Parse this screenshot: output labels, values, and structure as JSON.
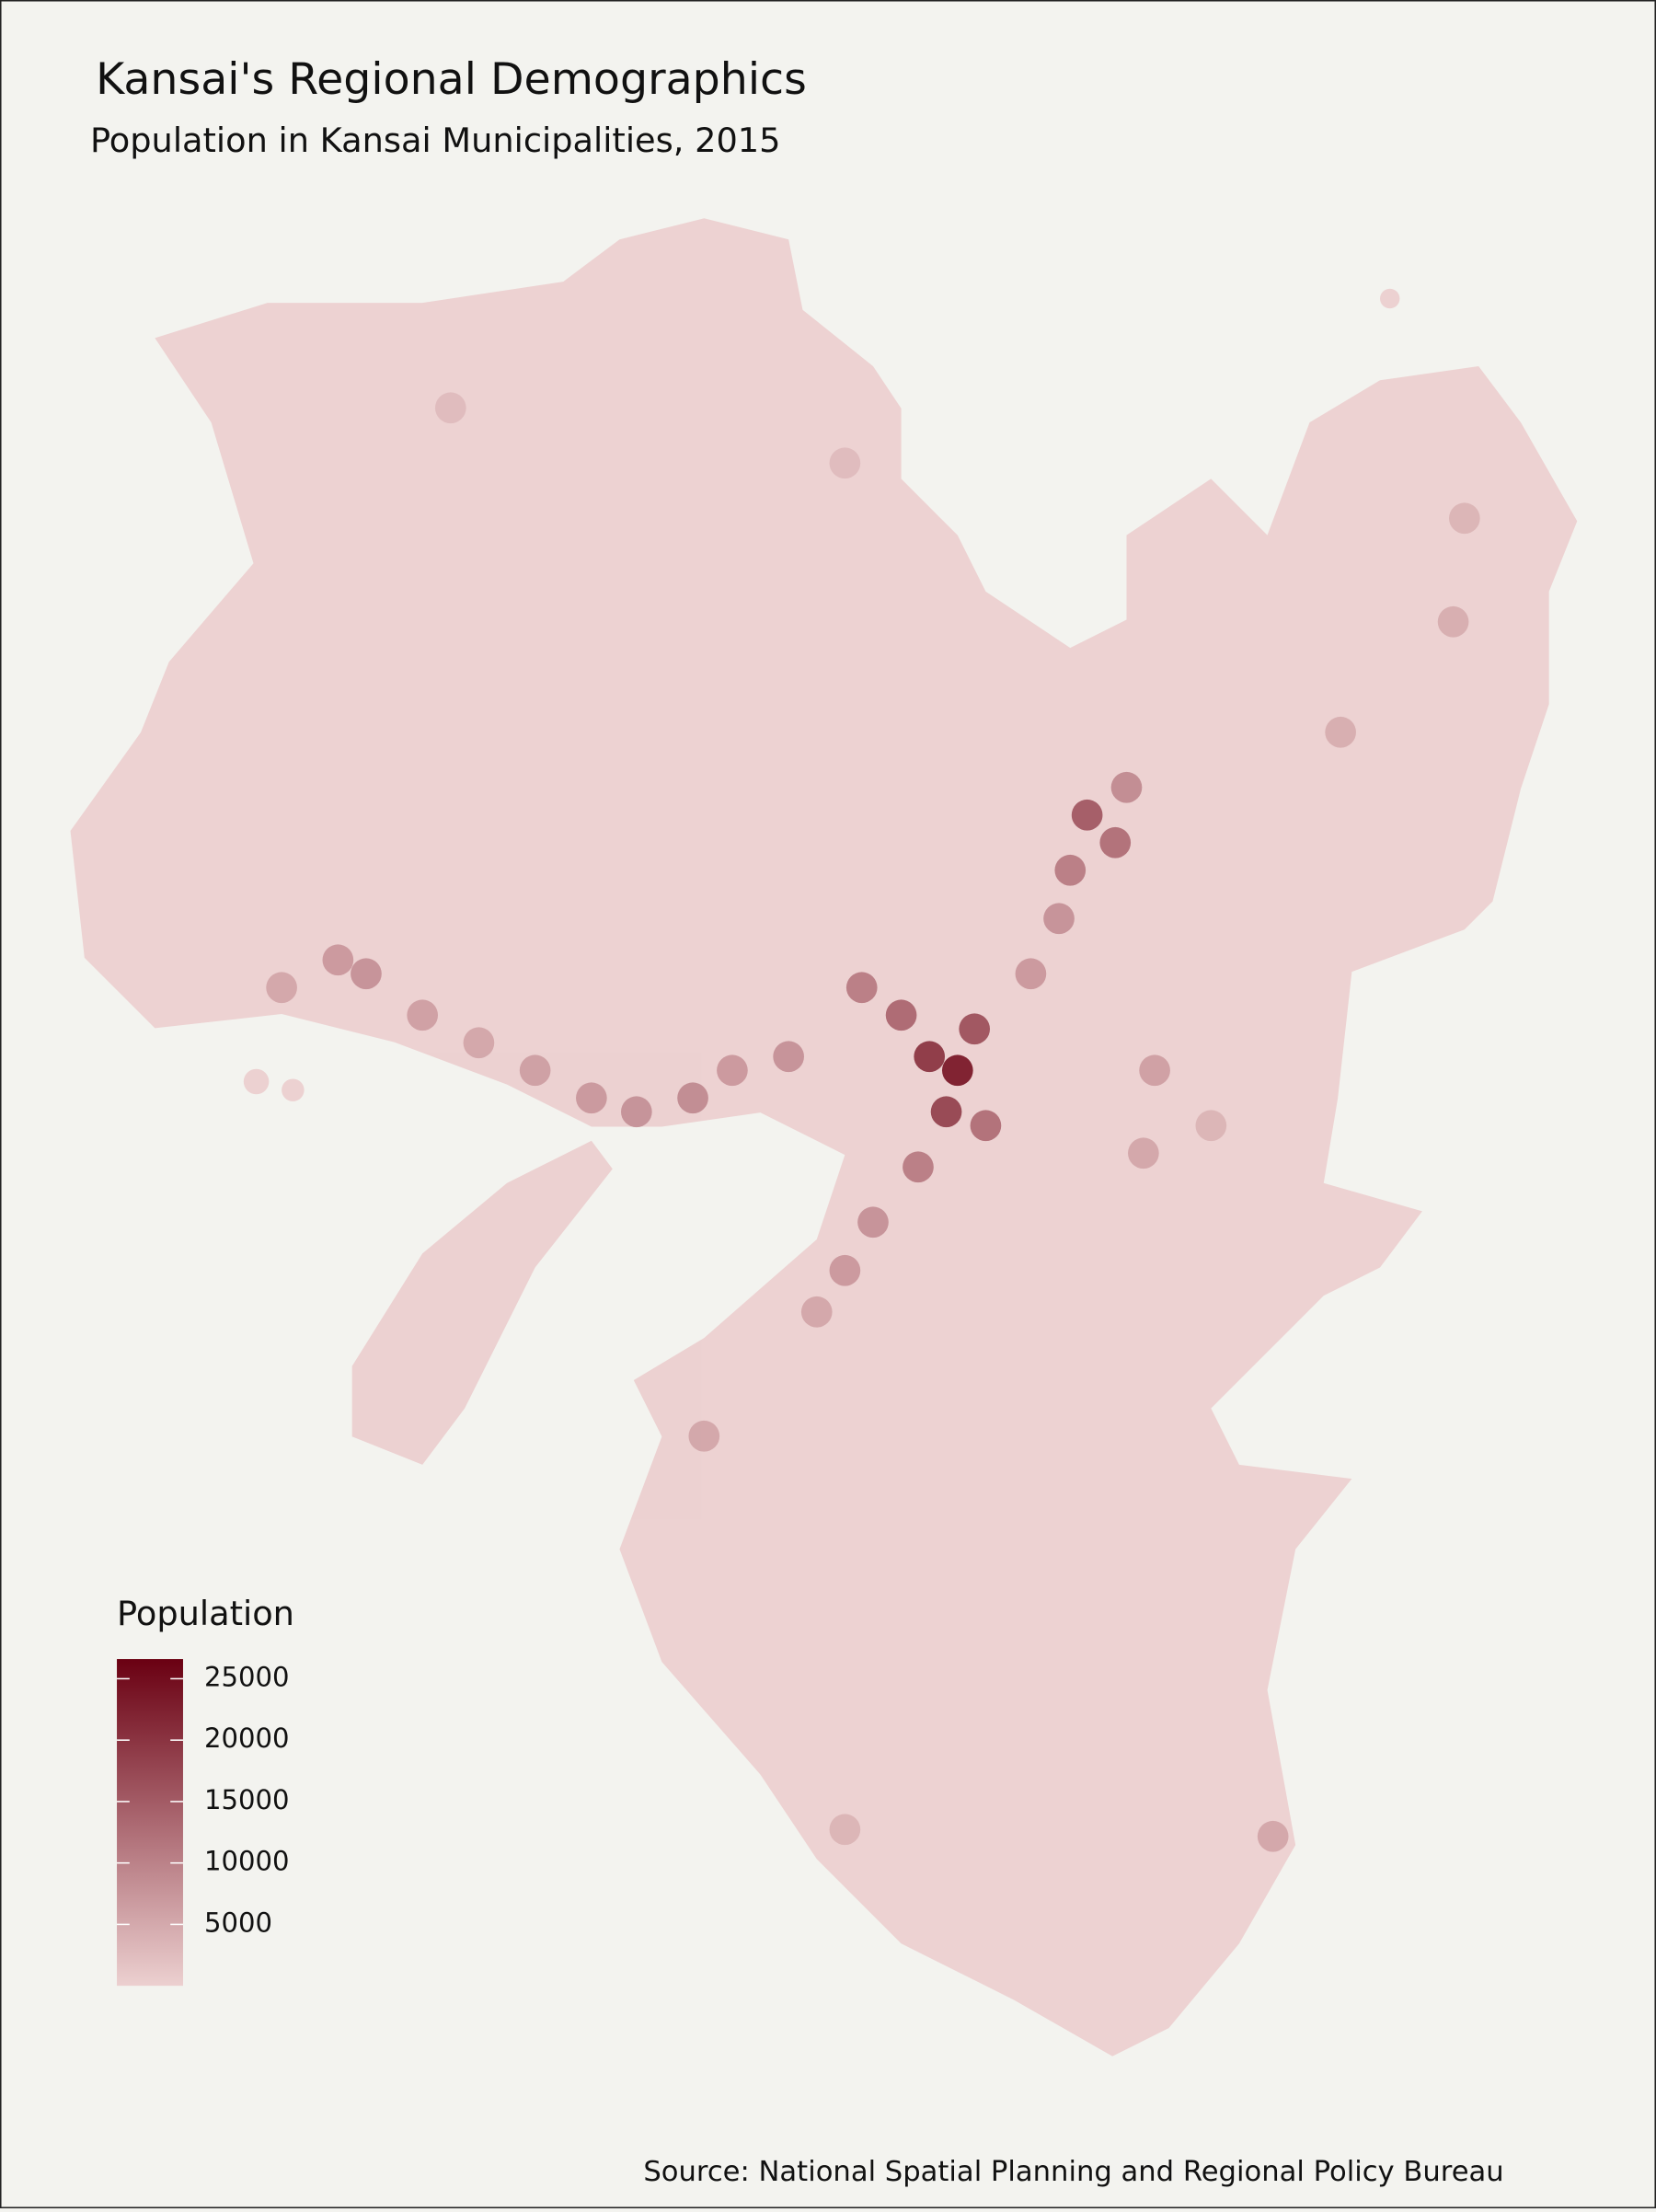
{
  "chart_data": {
    "type": "map",
    "title": "Kansai's Regional Demographics",
    "subtitle": "Population in Kansai Municipalities, 2015",
    "legend_title": "Population",
    "source": "Source: National Spatial Planning and Regional Policy Bureau",
    "color_low": "#ecd0d0",
    "color_high": "#6a0012",
    "colorbar_lim": [
      0,
      26600
    ],
    "colorbar_ticks": [
      5000,
      10000,
      15000,
      20000,
      25000
    ],
    "lon": [
      135.5,
      135.48,
      135.53,
      135.45,
      135.55,
      135.4,
      135.33,
      135.43,
      135.35,
      135.3,
      135.25,
      135.2,
      135.1,
      135.03,
      134.93,
      134.85,
      134.75,
      134.65,
      134.55,
      134.45,
      134.4,
      134.3,
      135.73,
      135.78,
      135.7,
      135.8,
      135.68,
      135.63,
      135.85,
      135.83,
      135.95,
      136.18,
      136.38,
      136.4,
      135.05,
      135.3,
      136.06,
      134.6,
      135.3
    ],
    "lat": [
      34.69,
      34.63,
      34.75,
      34.71,
      34.61,
      34.77,
      34.81,
      34.55,
      34.47,
      34.4,
      34.34,
      34.71,
      34.69,
      34.65,
      34.63,
      34.65,
      34.69,
      34.73,
      34.77,
      34.83,
      34.85,
      34.81,
      35.06,
      35.02,
      34.98,
      35.1,
      34.91,
      34.83,
      34.69,
      34.57,
      34.61,
      35.18,
      35.34,
      35.49,
      34.16,
      33.59,
      33.58,
      35.65,
      35.57
    ],
    "values": [
      26000,
      20000,
      18000,
      22000,
      14000,
      15000,
      12000,
      12000,
      9000,
      8000,
      6000,
      9000,
      8000,
      10000,
      9000,
      8000,
      7000,
      6000,
      7000,
      9000,
      8000,
      6000,
      17000,
      14000,
      12000,
      10000,
      9000,
      8000,
      7000,
      6000,
      4000,
      5000,
      5000,
      4000,
      6000,
      4000,
      6000,
      3000,
      3000
    ]
  }
}
